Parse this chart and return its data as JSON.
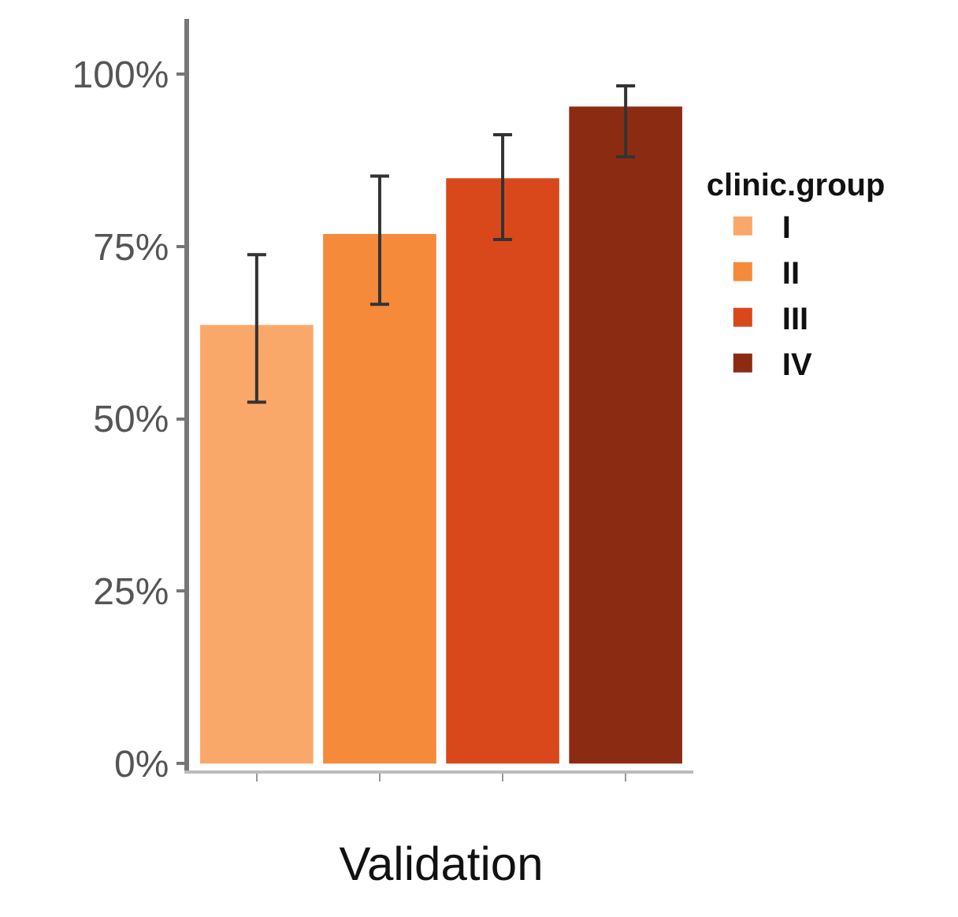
{
  "chart_data": {
    "type": "bar",
    "xlabel": "Validation",
    "legend_title": "clinic.group",
    "categories": [
      null,
      null,
      null,
      null
    ],
    "series": [
      {
        "name": "I",
        "color": "#f9a86a",
        "values": [
          63.6,
          null,
          null,
          null
        ],
        "errors": [
          [
            52.4,
            73.8
          ],
          null,
          null,
          null
        ]
      },
      {
        "name": "II",
        "color": "#f58a3a",
        "values": [
          null,
          76.8,
          null,
          null
        ],
        "errors": [
          null,
          [
            66.6,
            85.2
          ],
          null,
          null
        ]
      },
      {
        "name": "III",
        "color": "#d9481a",
        "values": [
          null,
          null,
          84.9,
          null
        ],
        "errors": [
          null,
          null,
          [
            76.0,
            91.2
          ],
          null
        ]
      },
      {
        "name": "IV",
        "color": "#8b2c12",
        "values": [
          null,
          null,
          null,
          95.3
        ],
        "errors": [
          null,
          null,
          null,
          [
            88.0,
            98.3
          ]
        ]
      }
    ],
    "ylim": [
      -1,
      108
    ],
    "yticks": [
      {
        "value": 0,
        "label": "0%"
      },
      {
        "value": 25,
        "label": "25%"
      },
      {
        "value": 50,
        "label": "50%"
      },
      {
        "value": 75,
        "label": "75%"
      },
      {
        "value": 100,
        "label": "100%"
      }
    ],
    "grid": false,
    "legend": "right"
  }
}
